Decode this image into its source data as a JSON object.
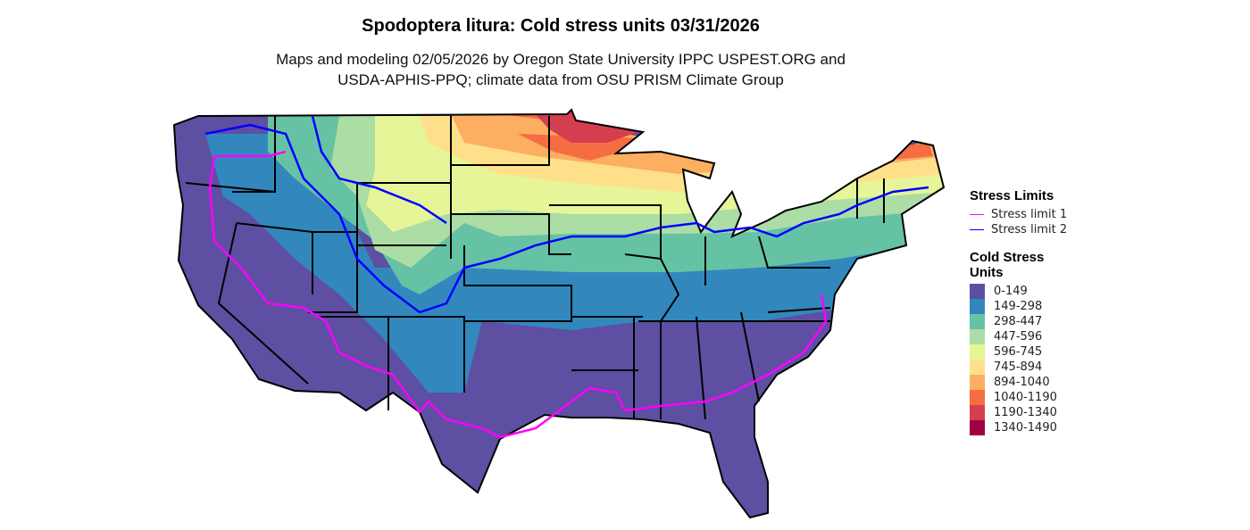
{
  "title": "Spodoptera litura: Cold stress units 03/31/2026",
  "subtitle_line1": "Maps and modeling 02/05/2026 by Oregon State University IPPC USPEST.ORG and",
  "subtitle_line2": "USDA-APHIS-PPQ; climate data from OSU PRISM Climate Group",
  "legend": {
    "stress_title": "Stress Limits",
    "stress_items": [
      {
        "label": "Stress limit 1",
        "color": "#FF00FF"
      },
      {
        "label": "Stress limit 2",
        "color": "#0000FF"
      }
    ],
    "units_title_line1": "Cold Stress",
    "units_title_line2": "Units",
    "bins": [
      {
        "label": "0-149",
        "color": "#5E4FA2"
      },
      {
        "label": "149-298",
        "color": "#3288BD"
      },
      {
        "label": "298-447",
        "color": "#66C2A5"
      },
      {
        "label": "447-596",
        "color": "#ABDDA4"
      },
      {
        "label": "596-745",
        "color": "#E6F598"
      },
      {
        "label": "745-894",
        "color": "#FEE08B"
      },
      {
        "label": "894-1040",
        "color": "#FDAE61"
      },
      {
        "label": "1040-1190",
        "color": "#F46D43"
      },
      {
        "label": "1190-1340",
        "color": "#D53E4F"
      },
      {
        "label": "1340-1490",
        "color": "#9E0142"
      }
    ]
  }
}
